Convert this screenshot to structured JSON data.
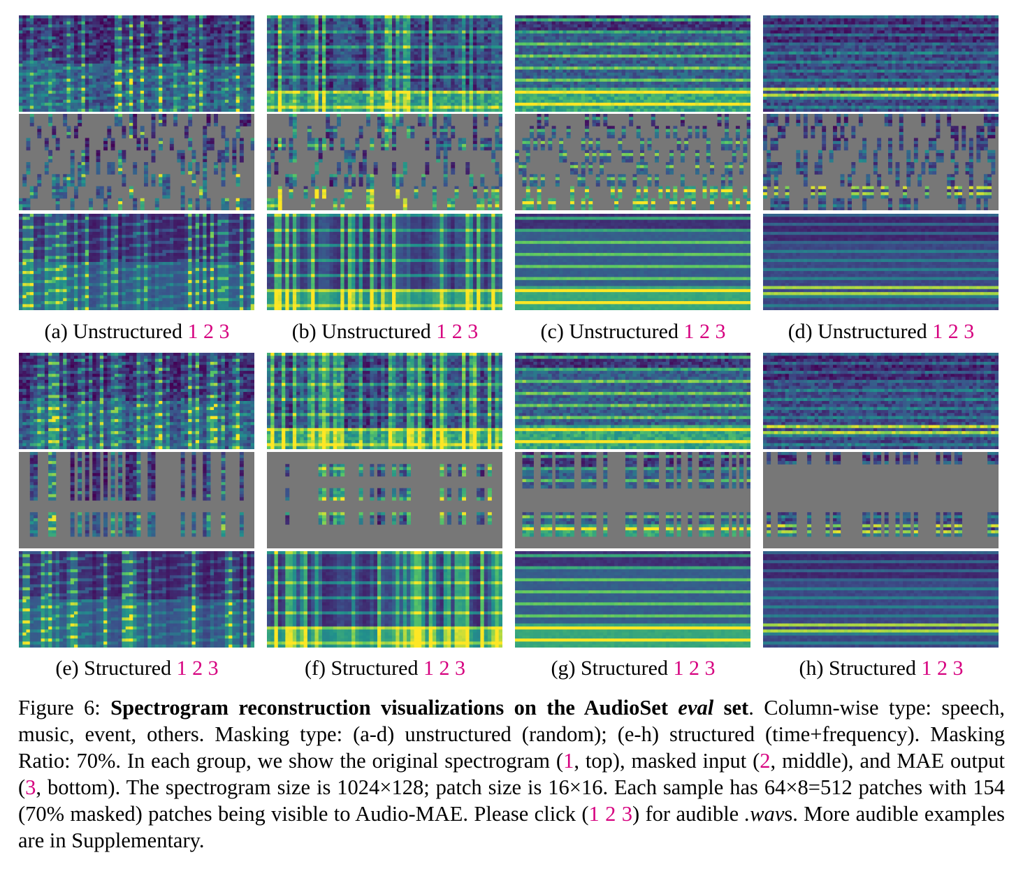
{
  "figure": {
    "panels": [
      {
        "id": "a",
        "label": "(a) Unstructured",
        "masking": "unstructured",
        "theme": "speech"
      },
      {
        "id": "b",
        "label": "(b) Unstructured",
        "masking": "unstructured",
        "theme": "music"
      },
      {
        "id": "c",
        "label": "(c) Unstructured",
        "masking": "unstructured",
        "theme": "event"
      },
      {
        "id": "d",
        "label": "(d) Unstructured",
        "masking": "unstructured",
        "theme": "others"
      },
      {
        "id": "e",
        "label": "(e) Structured",
        "masking": "structured",
        "theme": "speech"
      },
      {
        "id": "f",
        "label": "(f) Structured",
        "masking": "structured",
        "theme": "music"
      },
      {
        "id": "g",
        "label": "(g) Structured",
        "masking": "structured",
        "theme": "event"
      },
      {
        "id": "h",
        "label": "(h) Structured",
        "masking": "structured",
        "theme": "others"
      }
    ],
    "links": [
      "1",
      "2",
      "3"
    ],
    "colors": {
      "mask_gray": "#777777",
      "link": "#d6007f",
      "viridis_dark": "#440154",
      "viridis_mid": "#21918c",
      "viridis_bright": "#fde725"
    }
  },
  "caption": {
    "prefix": "Figure 6: ",
    "bold_a": "Spectrogram reconstruction visualizations on the AudioSet ",
    "bold_italic": "eval",
    "bold_b": " set",
    "t1": ".  Column-wise type: speech, music, event, others. Masking type: (a-d) unstructured (random); (e-h) structured (time+frequency). Masking Ratio: 70%. In each group, we show the original spectrogram (",
    "l1": "1",
    "t2": ", top), masked input (",
    "l2": "2",
    "t3": ", middle), and MAE output (",
    "l3": "3",
    "t4": ", bottom). The spectrogram size is 1024×128; patch size is 16×16. Each sample has 64×8=512 patches with 154 (70% masked) patches being visible to Audio-MAE. Please click (",
    "l4": "1 2 3",
    "t5": ") for audible ",
    "wav": ".wav",
    "t6": "s. More audible examples are in Supplementary."
  }
}
